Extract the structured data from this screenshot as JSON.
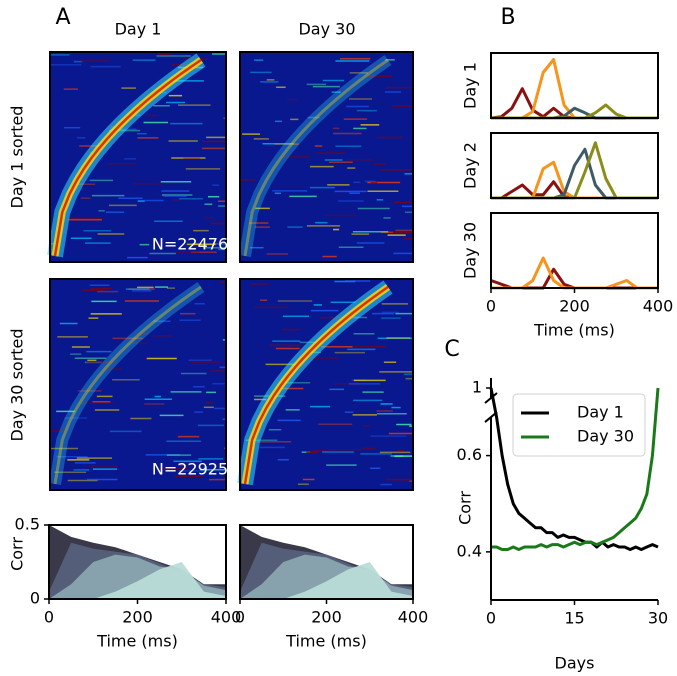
{
  "chart_data": [
    {
      "type": "heatmap",
      "panel": "A",
      "columns": [
        "Day 1",
        "Day 30"
      ],
      "rows": [
        "Day 1 sorted",
        "Day 30 sorted"
      ],
      "annotations": [
        "N=22476",
        "N=22925"
      ]
    },
    {
      "type": "area",
      "ylabel": "Corr",
      "xlabel": "Time (ms)",
      "xlim": [
        0,
        400
      ],
      "ylim": [
        0,
        0.5
      ],
      "xticks": [
        0,
        200,
        400
      ],
      "yticks": [
        0,
        0.5
      ],
      "x": [
        0,
        50,
        100,
        150,
        200,
        250,
        300,
        350,
        400
      ],
      "series": [
        {
          "color": "#2e2e40",
          "values": [
            0.5,
            0.42,
            0.38,
            0.35,
            0.3,
            0.25,
            0.2,
            0.1,
            0.1
          ]
        },
        {
          "color": "#55607a",
          "values": [
            0.05,
            0.38,
            0.34,
            0.32,
            0.3,
            0.24,
            0.18,
            0.1,
            0.08
          ]
        },
        {
          "color": "#8aa4b0",
          "values": [
            0,
            0.1,
            0.25,
            0.3,
            0.28,
            0.22,
            0.2,
            0.09,
            0.06
          ]
        },
        {
          "color": "#b9dcd8",
          "values": [
            0,
            0,
            0,
            0.05,
            0.12,
            0.2,
            0.25,
            0.05,
            0.02
          ]
        }
      ]
    },
    {
      "type": "area",
      "xlabel": "Time (ms)",
      "xlim": [
        0,
        400
      ],
      "ylim": [
        0,
        0.5
      ],
      "xticks": [
        0,
        200,
        400
      ],
      "x": [
        0,
        50,
        100,
        150,
        200,
        250,
        300,
        350,
        400
      ],
      "series": [
        {
          "color": "#2e2e40",
          "values": [
            0.5,
            0.42,
            0.38,
            0.35,
            0.3,
            0.25,
            0.2,
            0.1,
            0.1
          ]
        },
        {
          "color": "#55607a",
          "values": [
            0.05,
            0.38,
            0.34,
            0.32,
            0.3,
            0.24,
            0.18,
            0.1,
            0.08
          ]
        },
        {
          "color": "#8aa4b0",
          "values": [
            0,
            0.1,
            0.25,
            0.3,
            0.28,
            0.22,
            0.2,
            0.09,
            0.06
          ]
        },
        {
          "color": "#b9dcd8",
          "values": [
            0,
            0,
            0,
            0.05,
            0.12,
            0.2,
            0.25,
            0.05,
            0.02
          ]
        }
      ]
    },
    {
      "type": "line",
      "panel": "B",
      "ylabel": "Day 1",
      "xlim": [
        0,
        400
      ],
      "ylim": [
        0,
        1
      ],
      "x": [
        0,
        25,
        50,
        75,
        100,
        125,
        150,
        175,
        200,
        225,
        250,
        275,
        300,
        325,
        350,
        375,
        400
      ],
      "series": [
        {
          "color": "#8b1010",
          "values": [
            0,
            0.02,
            0.15,
            0.45,
            0.12,
            0.02,
            0.15,
            0.02,
            0,
            0,
            0,
            0,
            0,
            0,
            0,
            0,
            0
          ]
        },
        {
          "color": "#f7941d",
          "values": [
            0,
            0,
            0,
            0,
            0.1,
            0.7,
            0.9,
            0.2,
            0,
            0,
            0,
            0,
            0,
            0,
            0,
            0,
            0
          ]
        },
        {
          "color": "#3d5a66",
          "values": [
            0,
            0,
            0,
            0,
            0,
            0,
            0,
            0.03,
            0.15,
            0.08,
            0,
            0,
            0,
            0,
            0,
            0,
            0
          ]
        },
        {
          "color": "#8c8c1a",
          "values": [
            0,
            0,
            0,
            0,
            0,
            0,
            0,
            0,
            0,
            0,
            0.08,
            0.2,
            0.06,
            0,
            0,
            0,
            0
          ]
        }
      ]
    },
    {
      "type": "line",
      "ylabel": "Day 2",
      "xlim": [
        0,
        400
      ],
      "ylim": [
        0,
        1
      ],
      "x": [
        0,
        25,
        50,
        75,
        100,
        125,
        150,
        175,
        200,
        225,
        250,
        275,
        300,
        325,
        350,
        375,
        400
      ],
      "series": [
        {
          "color": "#8b1010",
          "values": [
            0,
            0,
            0.1,
            0.2,
            0.05,
            0.05,
            0.25,
            0.02,
            0,
            0,
            0,
            0,
            0,
            0,
            0,
            0,
            0
          ]
        },
        {
          "color": "#f7941d",
          "values": [
            0,
            0,
            0,
            0,
            0,
            0.45,
            0.55,
            0.1,
            0,
            0,
            0,
            0,
            0,
            0,
            0,
            0,
            0
          ]
        },
        {
          "color": "#3d5a66",
          "values": [
            0,
            0,
            0,
            0,
            0,
            0,
            0,
            0.05,
            0.5,
            0.75,
            0.2,
            0,
            0,
            0,
            0,
            0,
            0
          ]
        },
        {
          "color": "#8c8c1a",
          "values": [
            0,
            0,
            0,
            0,
            0,
            0,
            0,
            0,
            0,
            0.4,
            0.85,
            0.3,
            0,
            0,
            0,
            0,
            0
          ]
        }
      ]
    },
    {
      "type": "line",
      "ylabel": "Day 30",
      "xlabel": "Time (ms)",
      "xlim": [
        0,
        400
      ],
      "ylim": [
        0,
        1
      ],
      "xticks": [
        0,
        200,
        400
      ],
      "x": [
        0,
        25,
        50,
        75,
        100,
        125,
        150,
        175,
        200,
        225,
        250,
        275,
        300,
        325,
        350,
        375,
        400
      ],
      "series": [
        {
          "color": "#8b1010",
          "values": [
            0.1,
            0.05,
            0,
            0,
            0,
            0,
            0.25,
            0.05,
            0,
            0,
            0,
            0,
            0,
            0,
            0,
            0,
            0
          ]
        },
        {
          "color": "#f7941d",
          "values": [
            0,
            0,
            0,
            0,
            0.1,
            0.4,
            0.1,
            0,
            0,
            0,
            0,
            0,
            0.05,
            0.1,
            0,
            0,
            0
          ]
        }
      ]
    },
    {
      "type": "line",
      "panel": "C",
      "xlabel": "Days",
      "ylabel": "Corr",
      "xlim": [
        0,
        30
      ],
      "ylim": [
        0.3,
        1.02
      ],
      "ybreak": [
        0.68,
        0.98
      ],
      "xticks": [
        0,
        15,
        30
      ],
      "yticks": [
        0.4,
        0.6,
        1
      ],
      "legend": "upper right",
      "x": [
        0,
        1,
        2,
        3,
        4,
        5,
        6,
        7,
        8,
        9,
        10,
        11,
        12,
        13,
        14,
        15,
        16,
        17,
        18,
        19,
        20,
        21,
        22,
        23,
        24,
        25,
        26,
        27,
        28,
        29,
        30
      ],
      "series": [
        {
          "name": "Day 1",
          "color": "#000000",
          "values": [
            1,
            0.68,
            0.6,
            0.54,
            0.5,
            0.48,
            0.47,
            0.46,
            0.45,
            0.45,
            0.44,
            0.44,
            0.43,
            0.435,
            0.43,
            0.43,
            0.425,
            0.42,
            0.42,
            0.41,
            0.42,
            0.41,
            0.415,
            0.41,
            0.41,
            0.405,
            0.41,
            0.405,
            0.41,
            0.415,
            0.41
          ]
        },
        {
          "name": "Day 30",
          "color": "#1a7a1a",
          "values": [
            0.41,
            0.41,
            0.405,
            0.405,
            0.41,
            0.405,
            0.41,
            0.41,
            0.41,
            0.415,
            0.41,
            0.415,
            0.415,
            0.41,
            0.415,
            0.42,
            0.415,
            0.42,
            0.42,
            0.415,
            0.42,
            0.425,
            0.43,
            0.44,
            0.45,
            0.46,
            0.47,
            0.49,
            0.52,
            0.6,
            1
          ]
        }
      ]
    }
  ]
}
